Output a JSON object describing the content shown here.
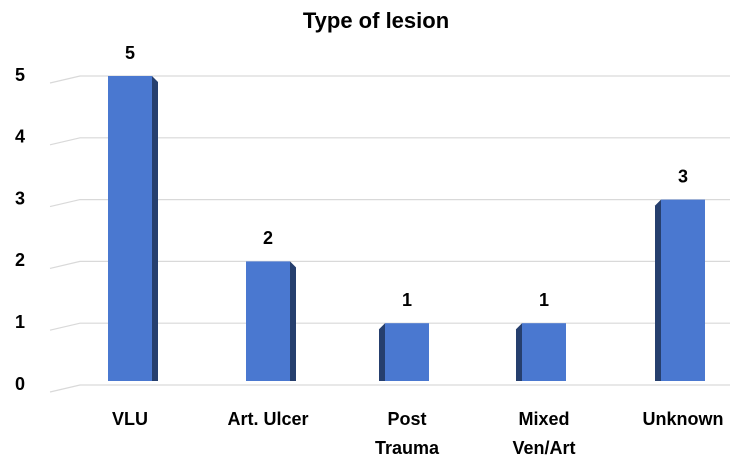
{
  "chart_data": {
    "type": "bar",
    "title": "Type of lesion",
    "categories": [
      "VLU",
      "Art. Ulcer",
      "Post\nTrauma",
      "Mixed\nVen/Art",
      "Unknown"
    ],
    "values": [
      5,
      2,
      1,
      1,
      3
    ],
    "color": "#4a78d0",
    "side_color": "#263f6e",
    "ylim": [
      0,
      5
    ],
    "yticks": [
      0,
      1,
      2,
      3,
      4,
      5
    ],
    "grid": true
  }
}
